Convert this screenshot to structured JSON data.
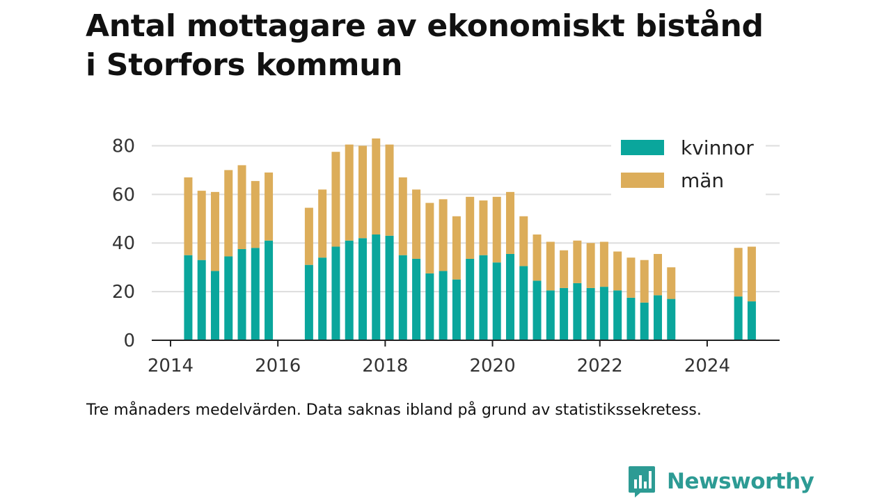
{
  "title": {
    "line1": "Antal mottagare av ekonomiskt bistånd",
    "line2": "i Storfors kommun"
  },
  "note": "Tre månaders medelvärden. Data saknas ibland på grund av statistikssekretess.",
  "brand": {
    "name": "Newsworthy",
    "icon": "newsworthy-logo-icon",
    "color": "#2d9b94"
  },
  "colors": {
    "kvinnor": "#0aa69c",
    "man": "#dcad5a",
    "grid": "#dddddd",
    "axis": "#222222"
  },
  "chart_data": {
    "type": "bar",
    "stacked": true,
    "title": "Antal mottagare av ekonomiskt bistånd i Storfors kommun",
    "xlabel": "",
    "ylabel": "",
    "xlim": [
      2013.65,
      2025.35
    ],
    "ylim": [
      0,
      85
    ],
    "xticks": [
      "2014",
      "2016",
      "2018",
      "2020",
      "2022",
      "2024"
    ],
    "yticks": [
      "0",
      "20",
      "40",
      "60",
      "80"
    ],
    "grid": true,
    "legend": "top-right",
    "x": [
      2014.33,
      2014.58,
      2014.83,
      2015.08,
      2015.33,
      2015.58,
      2015.83,
      2016.58,
      2016.83,
      2017.08,
      2017.33,
      2017.58,
      2017.83,
      2018.08,
      2018.33,
      2018.58,
      2018.83,
      2019.08,
      2019.33,
      2019.58,
      2019.83,
      2020.08,
      2020.33,
      2020.58,
      2020.83,
      2021.08,
      2021.33,
      2021.58,
      2021.83,
      2022.08,
      2022.33,
      2022.58,
      2022.83,
      2023.08,
      2023.33,
      2024.58,
      2024.83
    ],
    "series": [
      {
        "name": "kvinnor",
        "color": "#0aa69c",
        "values": [
          35,
          33,
          28.5,
          34.5,
          37.5,
          38,
          41,
          31,
          34,
          38.5,
          41,
          42,
          43.5,
          43,
          35,
          33.5,
          27.5,
          28.5,
          25,
          33.5,
          35,
          32,
          35.5,
          30.5,
          24.5,
          20.5,
          21.5,
          23.5,
          21.5,
          22,
          20.5,
          17.5,
          15.5,
          18.5,
          17,
          18,
          16
        ]
      },
      {
        "name": "män",
        "color": "#dcad5a",
        "values": [
          32,
          28.5,
          32.5,
          35.5,
          34.5,
          27.5,
          28,
          23.5,
          28,
          39,
          39.5,
          38,
          39.5,
          37.5,
          32,
          28.5,
          29,
          29.5,
          26,
          25.5,
          22.5,
          27,
          25.5,
          20.5,
          19,
          20,
          15.5,
          17.5,
          18.5,
          18.5,
          16,
          16.5,
          17.5,
          17,
          13,
          20,
          22.5
        ]
      }
    ]
  }
}
